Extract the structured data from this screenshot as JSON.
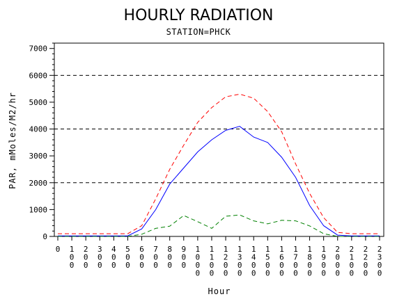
{
  "chart_data": {
    "type": "line",
    "title": "HOURLY RADIATION",
    "subtitle": "STATION=PHCK",
    "xlabel": "Hour",
    "ylabel": "PAR, mMoles/M2/hr",
    "ylim": [
      0,
      7200
    ],
    "yticks": [
      0,
      1000,
      2000,
      3000,
      4000,
      5000,
      6000,
      7000
    ],
    "ytick_labels": [
      "0",
      "1000",
      "2000",
      "3000",
      "4000",
      "5000",
      "6000",
      "7000"
    ],
    "reference_lines": [
      2000,
      4000,
      6000
    ],
    "x": [
      0,
      100,
      200,
      300,
      400,
      500,
      600,
      700,
      800,
      900,
      1000,
      1100,
      1200,
      1300,
      1400,
      1500,
      1600,
      1700,
      1800,
      1900,
      2000,
      2100,
      2200,
      2300
    ],
    "xtick_labels": [
      "0",
      "100",
      "200",
      "300",
      "400",
      "500",
      "600",
      "700",
      "800",
      "900",
      "1000",
      "1100",
      "1200",
      "1300",
      "1400",
      "1500",
      "1600",
      "1700",
      "1800",
      "1900",
      "2000",
      "2100",
      "2200",
      "2300"
    ],
    "series": [
      {
        "color": "#0000ff",
        "style": "solid",
        "values": [
          20,
          20,
          20,
          20,
          20,
          20,
          280,
          1000,
          1950,
          2550,
          3150,
          3600,
          3950,
          4100,
          3700,
          3500,
          2950,
          2200,
          1150,
          400,
          50,
          20,
          20,
          20
        ]
      },
      {
        "color": "#ff0000",
        "style": "dashed",
        "values": [
          100,
          100,
          100,
          100,
          100,
          100,
          400,
          1400,
          2500,
          3400,
          4250,
          4800,
          5200,
          5300,
          5150,
          4650,
          3900,
          2700,
          1600,
          700,
          150,
          100,
          100,
          100
        ]
      },
      {
        "color": "#008000",
        "style": "dashed",
        "values": [
          0,
          0,
          0,
          0,
          0,
          0,
          80,
          300,
          380,
          780,
          550,
          300,
          750,
          800,
          580,
          470,
          600,
          580,
          390,
          100,
          0,
          0,
          0,
          0
        ]
      }
    ],
    "grid": false,
    "legend": "none"
  }
}
